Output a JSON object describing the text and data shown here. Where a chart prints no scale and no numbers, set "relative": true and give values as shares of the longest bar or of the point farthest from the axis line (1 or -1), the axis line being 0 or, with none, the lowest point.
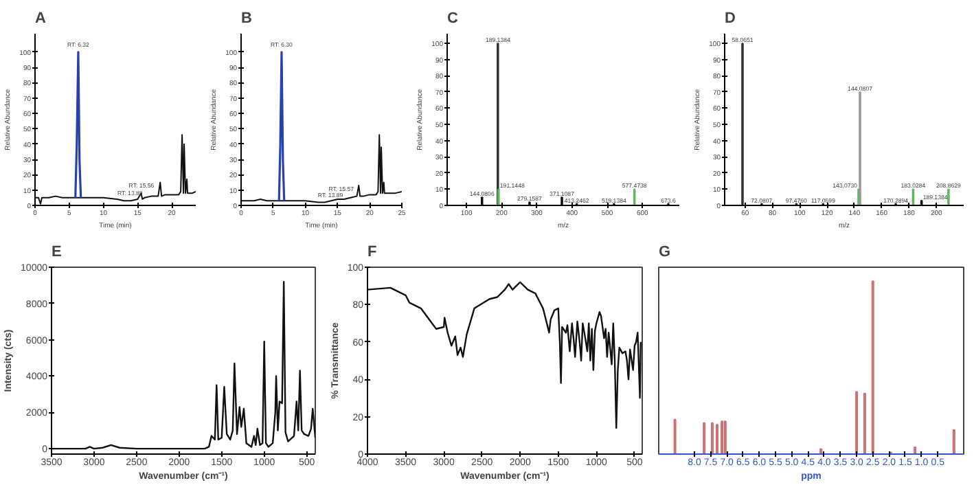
{
  "chart_data": [
    {
      "type": "line",
      "title": "A",
      "xlabel": "Time (min)",
      "ylabel": "Relative Abundance",
      "xlim": [
        0,
        23.5
      ],
      "ylim": [
        0,
        112
      ],
      "xticks": [
        0,
        5,
        10,
        15,
        20
      ],
      "yticks": [
        0,
        10,
        20,
        30,
        40,
        50,
        60,
        70,
        80,
        90,
        100
      ],
      "series": [
        {
          "color": "#111111",
          "x": [
            0,
            0.5,
            0.8,
            1.0,
            2,
            3,
            4,
            5,
            5.9,
            6.7,
            8,
            10,
            12,
            13,
            14,
            15,
            15.5,
            15.7,
            16,
            17,
            18,
            18.3,
            18.5,
            19,
            20,
            21,
            21.3,
            21.5,
            21.7,
            21.8,
            22,
            22.2,
            22.3,
            22.5,
            23,
            23.5
          ],
          "values": [
            5,
            5,
            1,
            5,
            5,
            6,
            5,
            5,
            5,
            5,
            5,
            5,
            4,
            3,
            3,
            4,
            8,
            4,
            5,
            6,
            6,
            15,
            6,
            7,
            7,
            7,
            9,
            46,
            8,
            40,
            8,
            17,
            8,
            8,
            8,
            9
          ]
        },
        {
          "color": "#2a3fb0",
          "x": [
            5.9,
            6.1,
            6.32,
            6.5,
            6.7
          ],
          "values": [
            5,
            40,
            100,
            30,
            5
          ]
        }
      ],
      "annotations": [
        {
          "text": "RT: 6.32",
          "x": 6.32,
          "y": 100
        },
        {
          "text": "RT: 13.89",
          "x": 13.89,
          "y": 3
        },
        {
          "text": "RT: 15.56",
          "x": 15.56,
          "y": 8
        }
      ]
    },
    {
      "type": "line",
      "title": "B",
      "xlabel": "Time (min)",
      "ylabel": "Relative Abundance",
      "xlim": [
        0,
        25
      ],
      "ylim": [
        0,
        112
      ],
      "xticks": [
        0,
        5,
        10,
        15,
        20,
        25
      ],
      "yticks": [
        0,
        10,
        20,
        30,
        40,
        50,
        60,
        70,
        80,
        90,
        100
      ],
      "series": [
        {
          "color": "#111111",
          "x": [
            0,
            1,
            2,
            3,
            4,
            5,
            5.9,
            6.7,
            8,
            10,
            12,
            13,
            14,
            15,
            16,
            17,
            18,
            18.3,
            18.5,
            19,
            20,
            21,
            21.3,
            21.5,
            21.7,
            21.8,
            22,
            22.2,
            22.3,
            22.5,
            23,
            24,
            25
          ],
          "values": [
            3,
            3,
            3,
            4,
            3,
            3,
            3,
            3,
            3,
            3,
            2,
            2,
            3,
            4,
            4,
            5,
            6,
            13,
            6,
            6,
            7,
            7,
            9,
            46,
            8,
            38,
            8,
            15,
            8,
            8,
            8,
            8,
            9
          ]
        },
        {
          "color": "#2a3fb0",
          "x": [
            5.9,
            6.1,
            6.3,
            6.5,
            6.7
          ],
          "values": [
            3,
            40,
            100,
            30,
            3
          ]
        }
      ],
      "annotations": [
        {
          "text": "RT: 13.89",
          "x": 13.89,
          "y": 2
        },
        {
          "text": "RT: 15.57",
          "x": 15.57,
          "y": 6
        },
        {
          "text": "RT: 6.30",
          "x": 6.3,
          "y": 100
        }
      ]
    },
    {
      "type": "bar",
      "title": "C",
      "xlabel": "m/z",
      "ylabel": "Relative Abundance",
      "xlim": [
        45,
        705
      ],
      "ylim": [
        0,
        106
      ],
      "xticks": [
        100,
        200,
        300,
        400,
        500,
        600
      ],
      "yticks": [
        0,
        10,
        20,
        30,
        40,
        50,
        60,
        70,
        80,
        90,
        100
      ],
      "x": [
        144.0806,
        189.1384,
        191.1448,
        279.1587,
        371.1087,
        413.2462,
        519.1384,
        577.4738,
        673.6
      ],
      "values": [
        5,
        100,
        10,
        2,
        5,
        1,
        1,
        10,
        1
      ],
      "colors": [
        "#111111",
        "#333333",
        "#5cb85c",
        "#111111",
        "#111111",
        "#111111",
        "#111111",
        "#5cb85c",
        "#111111"
      ],
      "annotations": [
        {
          "text": "144.0806",
          "x": 144.0806,
          "y": 5
        },
        {
          "text": "189.1384",
          "x": 189.1384,
          "y": 100
        },
        {
          "text": "191.1448",
          "x": 191.1448,
          "y": 10
        },
        {
          "text": "279.1587",
          "x": 279.1587,
          "y": 2
        },
        {
          "text": "371.1087",
          "x": 371.1087,
          "y": 5
        },
        {
          "text": "413.2462",
          "x": 413.2462,
          "y": 1
        },
        {
          "text": "519.1384",
          "x": 519.1384,
          "y": 1
        },
        {
          "text": "577.4738",
          "x": 577.4738,
          "y": 10
        },
        {
          "text": "673.6",
          "x": 673.6,
          "y": 1
        }
      ]
    },
    {
      "type": "bar",
      "title": "D",
      "xlabel": "m/z",
      "ylabel": "Relative Abundance",
      "xlim": [
        45,
        220
      ],
      "ylim": [
        0,
        106
      ],
      "xticks": [
        60,
        80,
        100,
        120,
        140,
        160,
        180,
        200
      ],
      "yticks": [
        0,
        10,
        20,
        30,
        40,
        50,
        60,
        70,
        80,
        90,
        100
      ],
      "x": [
        58.0651,
        72.0807,
        97.476,
        117.0699,
        143.073,
        144.0807,
        170.2894,
        183.0284,
        189.1384,
        208.8629
      ],
      "values": [
        100,
        1,
        1,
        1,
        10,
        70,
        1,
        10,
        3,
        10
      ],
      "colors": [
        "#333333",
        "#111111",
        "#111111",
        "#111111",
        "#5cb85c",
        "#999999",
        "#111111",
        "#5cb85c",
        "#111111",
        "#5cb85c"
      ],
      "annotations": [
        {
          "text": "58.0651",
          "x": 58.0651,
          "y": 100
        },
        {
          "text": "72.0807",
          "x": 72.0807,
          "y": 1
        },
        {
          "text": "97.4760",
          "x": 97.476,
          "y": 1
        },
        {
          "text": "117.0699",
          "x": 117.0699,
          "y": 1
        },
        {
          "text": "143.0730",
          "x": 143.073,
          "y": 10
        },
        {
          "text": "144.0807",
          "x": 144.0807,
          "y": 70
        },
        {
          "text": "170.2894",
          "x": 170.2894,
          "y": 1
        },
        {
          "text": "183.0284",
          "x": 183.0284,
          "y": 10
        },
        {
          "text": "189.1384",
          "x": 189.1384,
          "y": 3
        },
        {
          "text": "208.8629",
          "x": 208.8629,
          "y": 10
        }
      ]
    },
    {
      "type": "line",
      "title": "E",
      "xlabel": "Wavenumber (cm⁻¹)",
      "ylabel": "Intensity (cts)",
      "xlim": [
        3500,
        400
      ],
      "ylim": [
        -300,
        10000
      ],
      "xticks": [
        3500,
        3000,
        2500,
        2000,
        1500,
        1000,
        500
      ],
      "yticks": [
        0,
        2000,
        4000,
        6000,
        8000,
        10000
      ],
      "x": [
        3500,
        3100,
        3050,
        3000,
        2900,
        2800,
        2700,
        2500,
        1700,
        1650,
        1620,
        1600,
        1580,
        1560,
        1540,
        1500,
        1470,
        1440,
        1400,
        1370,
        1350,
        1320,
        1290,
        1270,
        1240,
        1210,
        1150,
        1120,
        1100,
        1080,
        1050,
        1020,
        1000,
        980,
        950,
        900,
        870,
        860,
        840,
        820,
        790,
        770,
        750,
        720,
        650,
        620,
        600,
        580,
        560,
        530,
        480,
        450,
        430,
        400
      ],
      "values": [
        0,
        0,
        100,
        0,
        50,
        200,
        50,
        0,
        0,
        100,
        700,
        600,
        500,
        3500,
        500,
        600,
        3400,
        800,
        500,
        1000,
        4700,
        800,
        2300,
        1200,
        2200,
        300,
        100,
        700,
        200,
        1100,
        200,
        300,
        5900,
        300,
        100,
        300,
        2000,
        4000,
        1000,
        2600,
        2500,
        9200,
        900,
        400,
        700,
        2600,
        1000,
        4300,
        1000,
        800,
        700,
        1100,
        2200,
        600
      ],
      "color": "#111111"
    },
    {
      "type": "line",
      "title": "F",
      "xlabel": "Wavenumber (cm⁻¹)",
      "ylabel": "% Transmittance",
      "xlim": [
        4000,
        400
      ],
      "ylim": [
        0,
        100
      ],
      "xticks": [
        4000,
        3500,
        3000,
        2500,
        2000,
        1500,
        1000,
        500
      ],
      "yticks": [
        0,
        20,
        40,
        60,
        80,
        100
      ],
      "x": [
        4000,
        3700,
        3500,
        3450,
        3300,
        3100,
        3000,
        2990,
        2950,
        2900,
        2850,
        2820,
        2780,
        2750,
        2700,
        2600,
        2400,
        2300,
        2200,
        2150,
        2100,
        2050,
        2000,
        1950,
        1900,
        1800,
        1750,
        1700,
        1650,
        1620,
        1600,
        1550,
        1500,
        1480,
        1465,
        1450,
        1400,
        1380,
        1350,
        1320,
        1300,
        1280,
        1250,
        1220,
        1200,
        1180,
        1150,
        1120,
        1100,
        1080,
        1060,
        1040,
        1020,
        1000,
        960,
        940,
        900,
        880,
        860,
        840,
        800,
        780,
        760,
        740,
        720,
        700,
        660,
        620,
        600,
        580,
        560,
        520,
        500,
        480,
        460,
        430,
        420
      ],
      "values": [
        88,
        89,
        85,
        81,
        78,
        67,
        68,
        73,
        65,
        58,
        63,
        53,
        57,
        52,
        64,
        78,
        83,
        84,
        88,
        91,
        88,
        90,
        92,
        90,
        88,
        86,
        82,
        78,
        70,
        65,
        72,
        77,
        78,
        60,
        38,
        68,
        65,
        69,
        55,
        70,
        62,
        52,
        71,
        60,
        50,
        70,
        63,
        55,
        70,
        50,
        67,
        45,
        66,
        70,
        76,
        74,
        62,
        67,
        52,
        65,
        48,
        70,
        50,
        14,
        45,
        57,
        54,
        55,
        50,
        40,
        56,
        45,
        58,
        60,
        65,
        30,
        60
      ],
      "color": "#111111"
    },
    {
      "type": "bar",
      "title": "G",
      "xlabel": "ppm",
      "relative": true,
      "xlim": [
        9.1,
        -0.3
      ],
      "xticks": [
        {
          "value": 8,
          "label": "8.0"
        },
        7.5,
        {
          "value": 7,
          "label": "7.0"
        },
        6.5,
        {
          "value": 6,
          "label": "6.0"
        },
        5.5,
        {
          "value": 5,
          "label": "5.0"
        },
        4.5,
        {
          "value": 4,
          "label": "4.0"
        },
        3.5,
        {
          "value": 3,
          "label": "3.0"
        },
        2.5,
        {
          "value": 2,
          "label": "2.0"
        },
        1.5,
        {
          "value": 1,
          "label": "1.0"
        },
        0.5
      ],
      "x": [
        8.6,
        7.7,
        7.45,
        7.3,
        7.15,
        7.05,
        4.1,
        3.0,
        2.75,
        2.5,
        1.95,
        1.2,
        0.0
      ],
      "values": [
        0.2,
        0.18,
        0.18,
        0.17,
        0.19,
        0.19,
        0.03,
        0.36,
        0.35,
        1.0,
        0.01,
        0.04,
        0.14
      ],
      "color": "#d07070"
    }
  ]
}
